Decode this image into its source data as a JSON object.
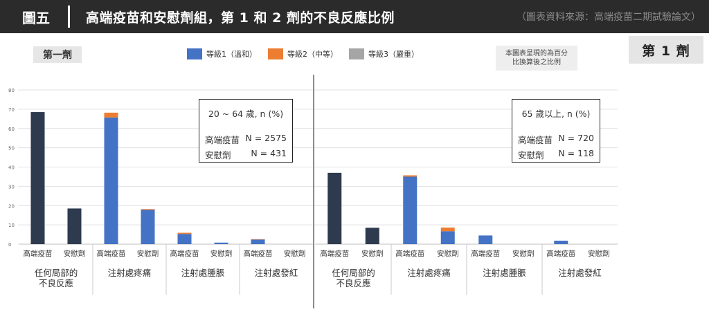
{
  "header": {
    "figure_number": "圖五",
    "title": "高端疫苗和安慰劑組，第 1 和 2 劑的不良反應比例",
    "source": "（圖表資料來源：高端疫苗二期試驗論文）"
  },
  "dose_tag": "第 1 劑",
  "dose_label": "第一劑",
  "note": {
    "line1": "本圖表呈現的為百分",
    "line2": "比換算後之比例"
  },
  "legend": [
    {
      "label": "等級1（溫和）",
      "color": "#4472c4"
    },
    {
      "label": "等級2（中等）",
      "color": "#ed7d31"
    },
    {
      "label": "等級3（嚴重）",
      "color": "#a5a5a5"
    }
  ],
  "colors": {
    "placebo_total": "#2e3a4e",
    "grade1": "#4472c4",
    "grade2": "#ed7d31",
    "grade3": "#a5a5a5",
    "gridline": "#e0e0e0",
    "divider": "#8c8c8c"
  },
  "boxes": {
    "left": {
      "title": "20 ~ 64 歲, n (%)",
      "rows": [
        {
          "label": "高端疫苗",
          "value": "N = 2575"
        },
        {
          "label": "安慰劑",
          "value": "N = 431"
        }
      ]
    },
    "right": {
      "title": "65 歲以上, n (%)",
      "rows": [
        {
          "label": "高端疫苗",
          "value": "N = 720"
        },
        {
          "label": "安慰劑",
          "value": "N = 118"
        }
      ]
    }
  },
  "chart_data": {
    "type": "bar",
    "stacked": true,
    "ylim": [
      0,
      80
    ],
    "yticks": [
      0,
      10,
      20,
      30,
      40,
      50,
      60,
      70,
      80
    ],
    "grid": true,
    "bar_labels": [
      "高端疫苗",
      "安慰劑"
    ],
    "panels": [
      {
        "groups": [
          {
            "label": [
              "任何局部的",
              "不良反應"
            ],
            "bars": [
              {
                "label": "高端疫苗",
                "total": 68.5
              },
              {
                "label": "安慰劑",
                "total": 18.5
              }
            ]
          },
          {
            "label": [
              "注射處疼痛"
            ],
            "bars": [
              {
                "label": "高端疫苗",
                "g1": 65.7,
                "g2": 2.5,
                "g3": 0
              },
              {
                "label": "安慰劑",
                "g1": 17.8,
                "g2": 0.4,
                "g3": 0
              }
            ]
          },
          {
            "label": [
              "注射處腫脹"
            ],
            "bars": [
              {
                "label": "高端疫苗",
                "g1": 5.3,
                "g2": 0.6,
                "g3": 0
              },
              {
                "label": "安慰劑",
                "g1": 0.8,
                "g2": 0,
                "g3": 0
              }
            ]
          },
          {
            "label": [
              "注射處發紅"
            ],
            "bars": [
              {
                "label": "高端疫苗",
                "g1": 2.4,
                "g2": 0.2,
                "g3": 0
              },
              {
                "label": "安慰劑",
                "g1": 0,
                "g2": 0,
                "g3": 0
              }
            ]
          }
        ]
      },
      {
        "groups": [
          {
            "label": [
              "任何局部的",
              "不良反應"
            ],
            "bars": [
              {
                "label": "高端疫苗",
                "total": 37.0
              },
              {
                "label": "安慰劑",
                "total": 8.5
              }
            ]
          },
          {
            "label": [
              "注射處疼痛"
            ],
            "bars": [
              {
                "label": "高端疫苗",
                "g1": 35.0,
                "g2": 0.7,
                "g3": 0
              },
              {
                "label": "安慰劑",
                "g1": 6.7,
                "g2": 1.9,
                "g3": 0
              }
            ]
          },
          {
            "label": [
              "注射處腫脹"
            ],
            "bars": [
              {
                "label": "高端疫苗",
                "g1": 4.5,
                "g2": 0,
                "g3": 0
              },
              {
                "label": "安慰劑",
                "g1": 0,
                "g2": 0,
                "g3": 0
              }
            ]
          },
          {
            "label": [
              "注射處發紅"
            ],
            "bars": [
              {
                "label": "高端疫苗",
                "g1": 1.8,
                "g2": 0,
                "g3": 0
              },
              {
                "label": "安慰劑",
                "g1": 0,
                "g2": 0,
                "g3": 0
              }
            ]
          }
        ]
      }
    ]
  }
}
